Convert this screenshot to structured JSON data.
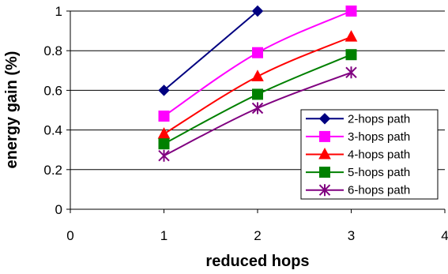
{
  "chart_data": {
    "type": "line",
    "title": "",
    "xlabel": "reduced hops",
    "ylabel": "energy gain (%)",
    "xlim": [
      0,
      4
    ],
    "ylim": [
      0,
      1
    ],
    "xticks": [
      0,
      1,
      2,
      3,
      4
    ],
    "yticks": [
      0,
      0.2,
      0.4,
      0.6,
      0.8,
      1
    ],
    "x_tick_labels": [
      "0",
      "1",
      "2",
      "3",
      "4"
    ],
    "y_tick_labels": [
      "0",
      "0.2",
      "0.4",
      "0.6",
      "0.8",
      "1"
    ],
    "grid": {
      "horizontal": true,
      "vertical": false
    },
    "legend": {
      "placement": "bottom-right"
    },
    "series": [
      {
        "name": "2-hops path",
        "color": "#000080",
        "marker": "diamond",
        "x": [
          1,
          2
        ],
        "y": [
          0.6,
          1.0
        ]
      },
      {
        "name": "3-hops path",
        "color": "#ff00ff",
        "marker": "square",
        "x": [
          1,
          2,
          3
        ],
        "y": [
          0.47,
          0.79,
          1.0
        ]
      },
      {
        "name": "4-hops path",
        "color": "#ff0000",
        "marker": "triangle",
        "x": [
          1,
          2,
          3
        ],
        "y": [
          0.38,
          0.67,
          0.87
        ]
      },
      {
        "name": "5-hops path",
        "color": "#008000",
        "marker": "square",
        "x": [
          1,
          2,
          3
        ],
        "y": [
          0.33,
          0.58,
          0.78
        ]
      },
      {
        "name": "6-hops path",
        "color": "#800080",
        "marker": "asterisk",
        "x": [
          1,
          2,
          3
        ],
        "y": [
          0.27,
          0.51,
          0.69
        ]
      }
    ]
  }
}
